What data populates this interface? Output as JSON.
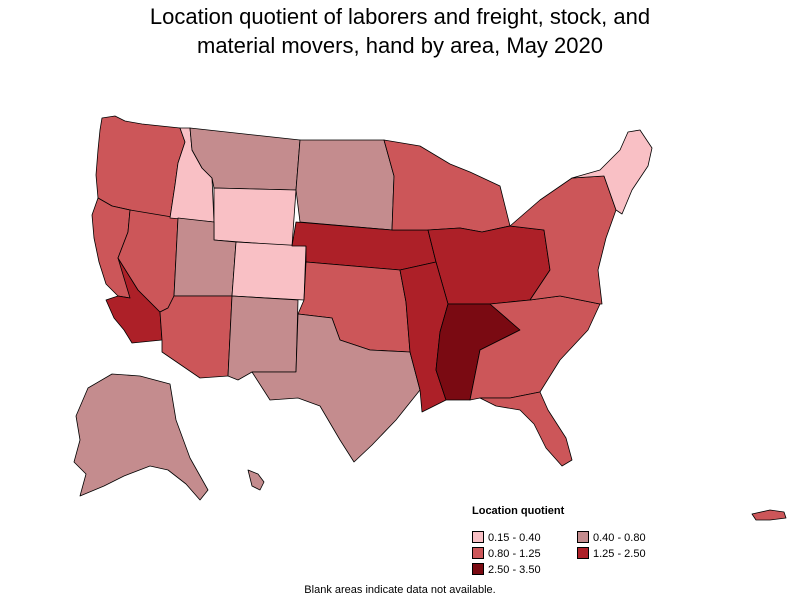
{
  "title": {
    "line1": "Location quotient of laborers and freight, stock, and",
    "line2": "material movers, hand by area, May 2020"
  },
  "legend": {
    "title": "Location quotient",
    "items": [
      {
        "label": "0.15 - 0.40",
        "color": "#f9c0c5"
      },
      {
        "label": "0.40 - 0.80",
        "color": "#c48c8e"
      },
      {
        "label": "0.80 - 1.25",
        "color": "#cc5659"
      },
      {
        "label": "1.25 - 2.50",
        "color": "#ad2028"
      },
      {
        "label": "2.50 - 3.50",
        "color": "#7a0a12"
      }
    ]
  },
  "footnote": "Blank areas indicate data not available.",
  "regions": [
    {
      "id": "pacific-northwest",
      "bin": 2
    },
    {
      "id": "california-north",
      "bin": 2
    },
    {
      "id": "california-south",
      "bin": 3
    },
    {
      "id": "nevada",
      "bin": 2
    },
    {
      "id": "idaho",
      "bin": 0
    },
    {
      "id": "montana",
      "bin": 1
    },
    {
      "id": "wyoming",
      "bin": 0
    },
    {
      "id": "utah",
      "bin": 1
    },
    {
      "id": "arizona",
      "bin": 2
    },
    {
      "id": "colorado",
      "bin": 0
    },
    {
      "id": "new-mexico",
      "bin": 1
    },
    {
      "id": "dakotas",
      "bin": 1
    },
    {
      "id": "nebraska-iowa",
      "bin": 3
    },
    {
      "id": "kansas-oklahoma",
      "bin": 2
    },
    {
      "id": "texas",
      "bin": 1
    },
    {
      "id": "upper-midwest",
      "bin": 2
    },
    {
      "id": "ohio-valley",
      "bin": 3
    },
    {
      "id": "south-central",
      "bin": 3
    },
    {
      "id": "mississippi-corridor",
      "bin": 4
    },
    {
      "id": "southeast",
      "bin": 2
    },
    {
      "id": "florida",
      "bin": 2
    },
    {
      "id": "mid-atlantic",
      "bin": 2
    },
    {
      "id": "new-england",
      "bin": 0
    },
    {
      "id": "alaska",
      "bin": 1
    },
    {
      "id": "hawaii",
      "bin": 1
    },
    {
      "id": "puerto-rico",
      "bin": 2
    }
  ]
}
